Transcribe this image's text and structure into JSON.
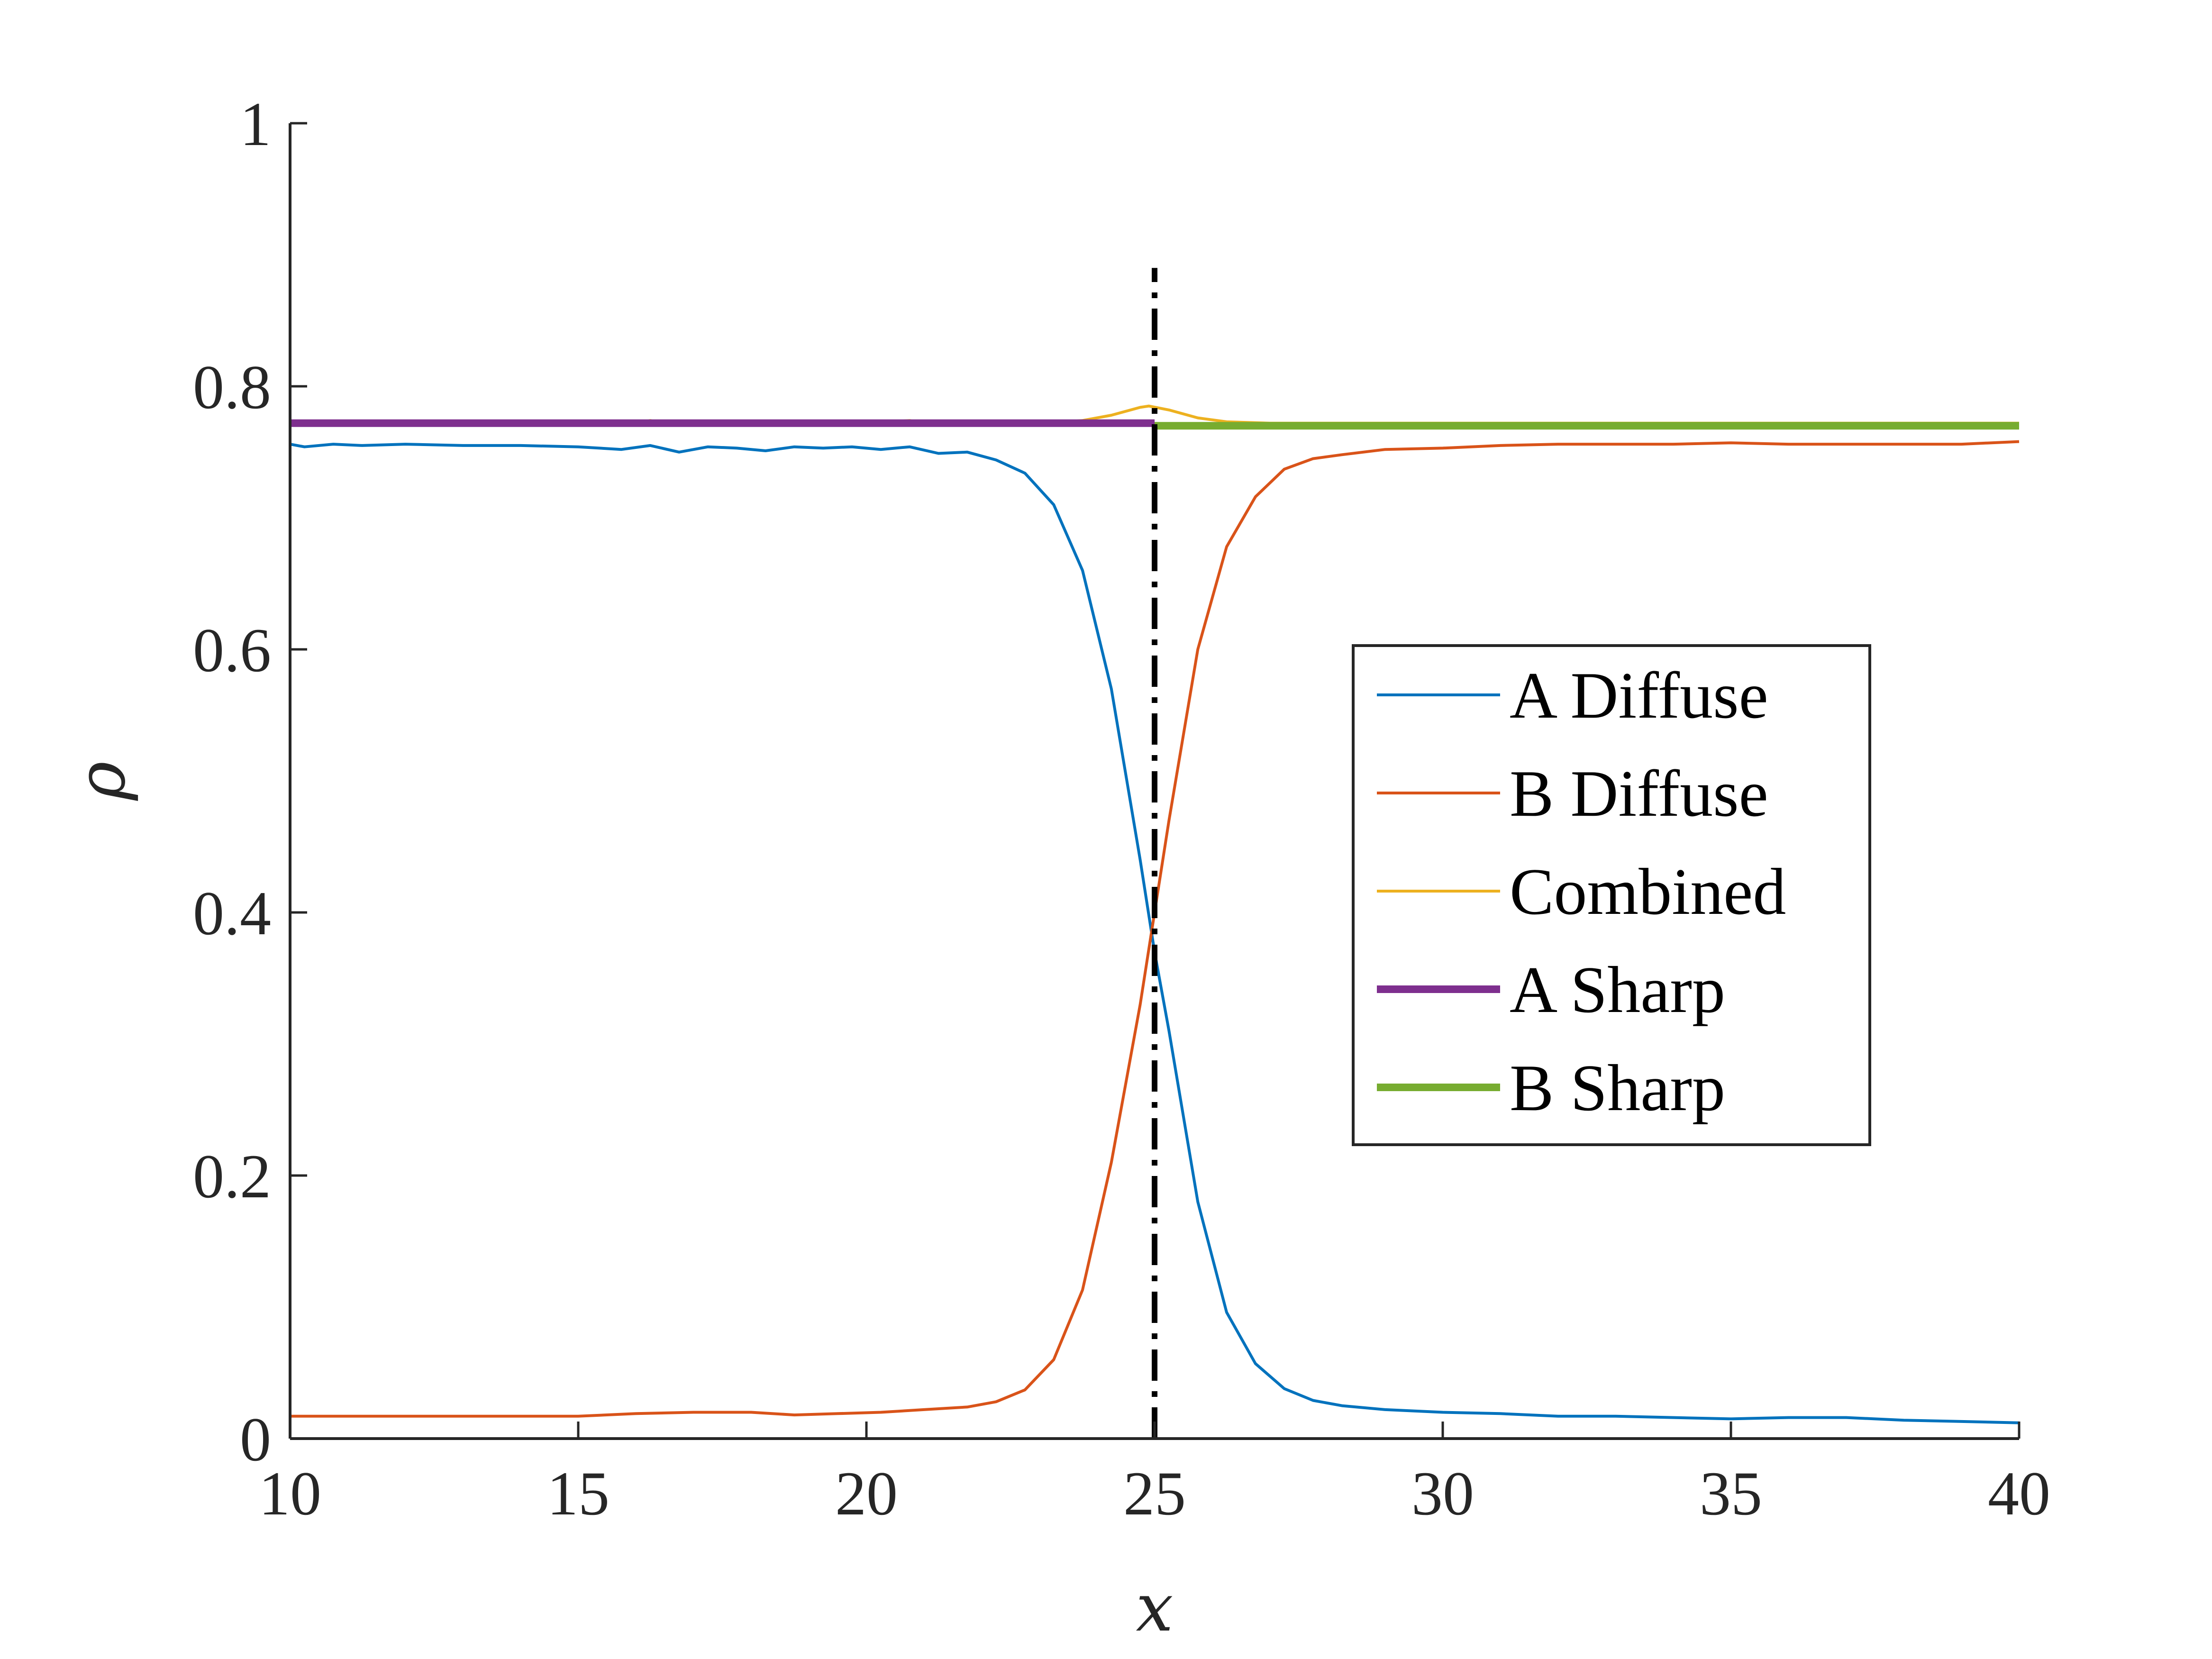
{
  "chart_data": {
    "type": "line",
    "title": "",
    "xlabel": "x",
    "ylabel": "ρ",
    "xlim": [
      10,
      40
    ],
    "ylim": [
      0,
      1
    ],
    "xticks": [
      10,
      15,
      20,
      25,
      30,
      35,
      40
    ],
    "xtick_labels": [
      "10",
      "15",
      "20",
      "25",
      "30",
      "35",
      "40"
    ],
    "yticks": [
      0,
      0.2,
      0.4,
      0.6,
      0.8,
      1
    ],
    "ytick_labels": [
      "0",
      "0.2",
      "0.4",
      "0.6",
      "0.8",
      "1"
    ],
    "grid": false,
    "legend_position": "right",
    "vertical_line": {
      "x": 25,
      "ymin": 0,
      "ymax": 0.89,
      "style": "dash-dot",
      "color": "#000000"
    },
    "series": [
      {
        "name": "A Diffuse",
        "color": "#0072BD",
        "width": "thin",
        "x": [
          10,
          10.25,
          10.75,
          11.25,
          12,
          13,
          14,
          15,
          15.75,
          16.25,
          16.75,
          17.25,
          17.75,
          18.25,
          18.75,
          19.25,
          19.75,
          20.25,
          20.75,
          21.25,
          21.75,
          22.25,
          22.75,
          23.25,
          23.75,
          24.25,
          24.75,
          25,
          25.25,
          25.75,
          26.25,
          26.75,
          27.25,
          27.75,
          28.25,
          29,
          30,
          31,
          32,
          33,
          34,
          35,
          36,
          37,
          38,
          39,
          40
        ],
        "y": [
          0.756,
          0.754,
          0.756,
          0.755,
          0.756,
          0.755,
          0.755,
          0.754,
          0.752,
          0.755,
          0.75,
          0.754,
          0.753,
          0.751,
          0.754,
          0.753,
          0.754,
          0.752,
          0.754,
          0.749,
          0.75,
          0.744,
          0.734,
          0.71,
          0.66,
          0.57,
          0.44,
          0.37,
          0.31,
          0.18,
          0.096,
          0.057,
          0.038,
          0.029,
          0.025,
          0.022,
          0.02,
          0.019,
          0.017,
          0.017,
          0.016,
          0.015,
          0.016,
          0.016,
          0.014,
          0.013,
          0.012
        ]
      },
      {
        "name": "B Diffuse",
        "color": "#D95319",
        "width": "thin",
        "x": [
          10,
          11,
          12,
          13,
          14,
          15,
          16,
          17,
          18,
          18.75,
          19.5,
          20.25,
          21,
          21.75,
          22.25,
          22.75,
          23.25,
          23.75,
          24.25,
          24.75,
          25,
          25.25,
          25.75,
          26.25,
          26.75,
          27.25,
          27.75,
          28.25,
          29,
          30,
          31,
          32,
          33,
          34,
          35,
          36,
          37,
          38,
          39,
          40
        ],
        "y": [
          0.017,
          0.017,
          0.017,
          0.017,
          0.017,
          0.017,
          0.019,
          0.02,
          0.02,
          0.018,
          0.019,
          0.02,
          0.022,
          0.024,
          0.028,
          0.037,
          0.06,
          0.113,
          0.21,
          0.33,
          0.4,
          0.47,
          0.6,
          0.678,
          0.716,
          0.737,
          0.745,
          0.748,
          0.752,
          0.753,
          0.755,
          0.756,
          0.756,
          0.756,
          0.757,
          0.756,
          0.756,
          0.756,
          0.756,
          0.758
        ]
      },
      {
        "name": "Combined",
        "color": "#EDB120",
        "width": "thin",
        "x": [
          10,
          12,
          14,
          16,
          16.25,
          16.5,
          18,
          20,
          20.75,
          21,
          22,
          23,
          23.75,
          24.25,
          24.75,
          24.9,
          25.25,
          25.75,
          26.25,
          27,
          28,
          29,
          30,
          31,
          32,
          33,
          34,
          35,
          36,
          37,
          38,
          39,
          40
        ],
        "y": [
          0.772,
          0.772,
          0.772,
          0.772,
          0.774,
          0.772,
          0.772,
          0.772,
          0.774,
          0.772,
          0.772,
          0.772,
          0.774,
          0.778,
          0.784,
          0.785,
          0.782,
          0.776,
          0.773,
          0.772,
          0.772,
          0.772,
          0.772,
          0.772,
          0.772,
          0.772,
          0.772,
          0.772,
          0.772,
          0.772,
          0.772,
          0.772,
          0.772
        ]
      },
      {
        "name": "A Sharp",
        "color": "#7E2F8E",
        "width": "thick",
        "x": [
          10,
          25
        ],
        "y": [
          0.772,
          0.772
        ]
      },
      {
        "name": "B Sharp",
        "color": "#77AC30",
        "width": "thick",
        "x": [
          25,
          40
        ],
        "y": [
          0.77,
          0.77
        ]
      }
    ]
  }
}
